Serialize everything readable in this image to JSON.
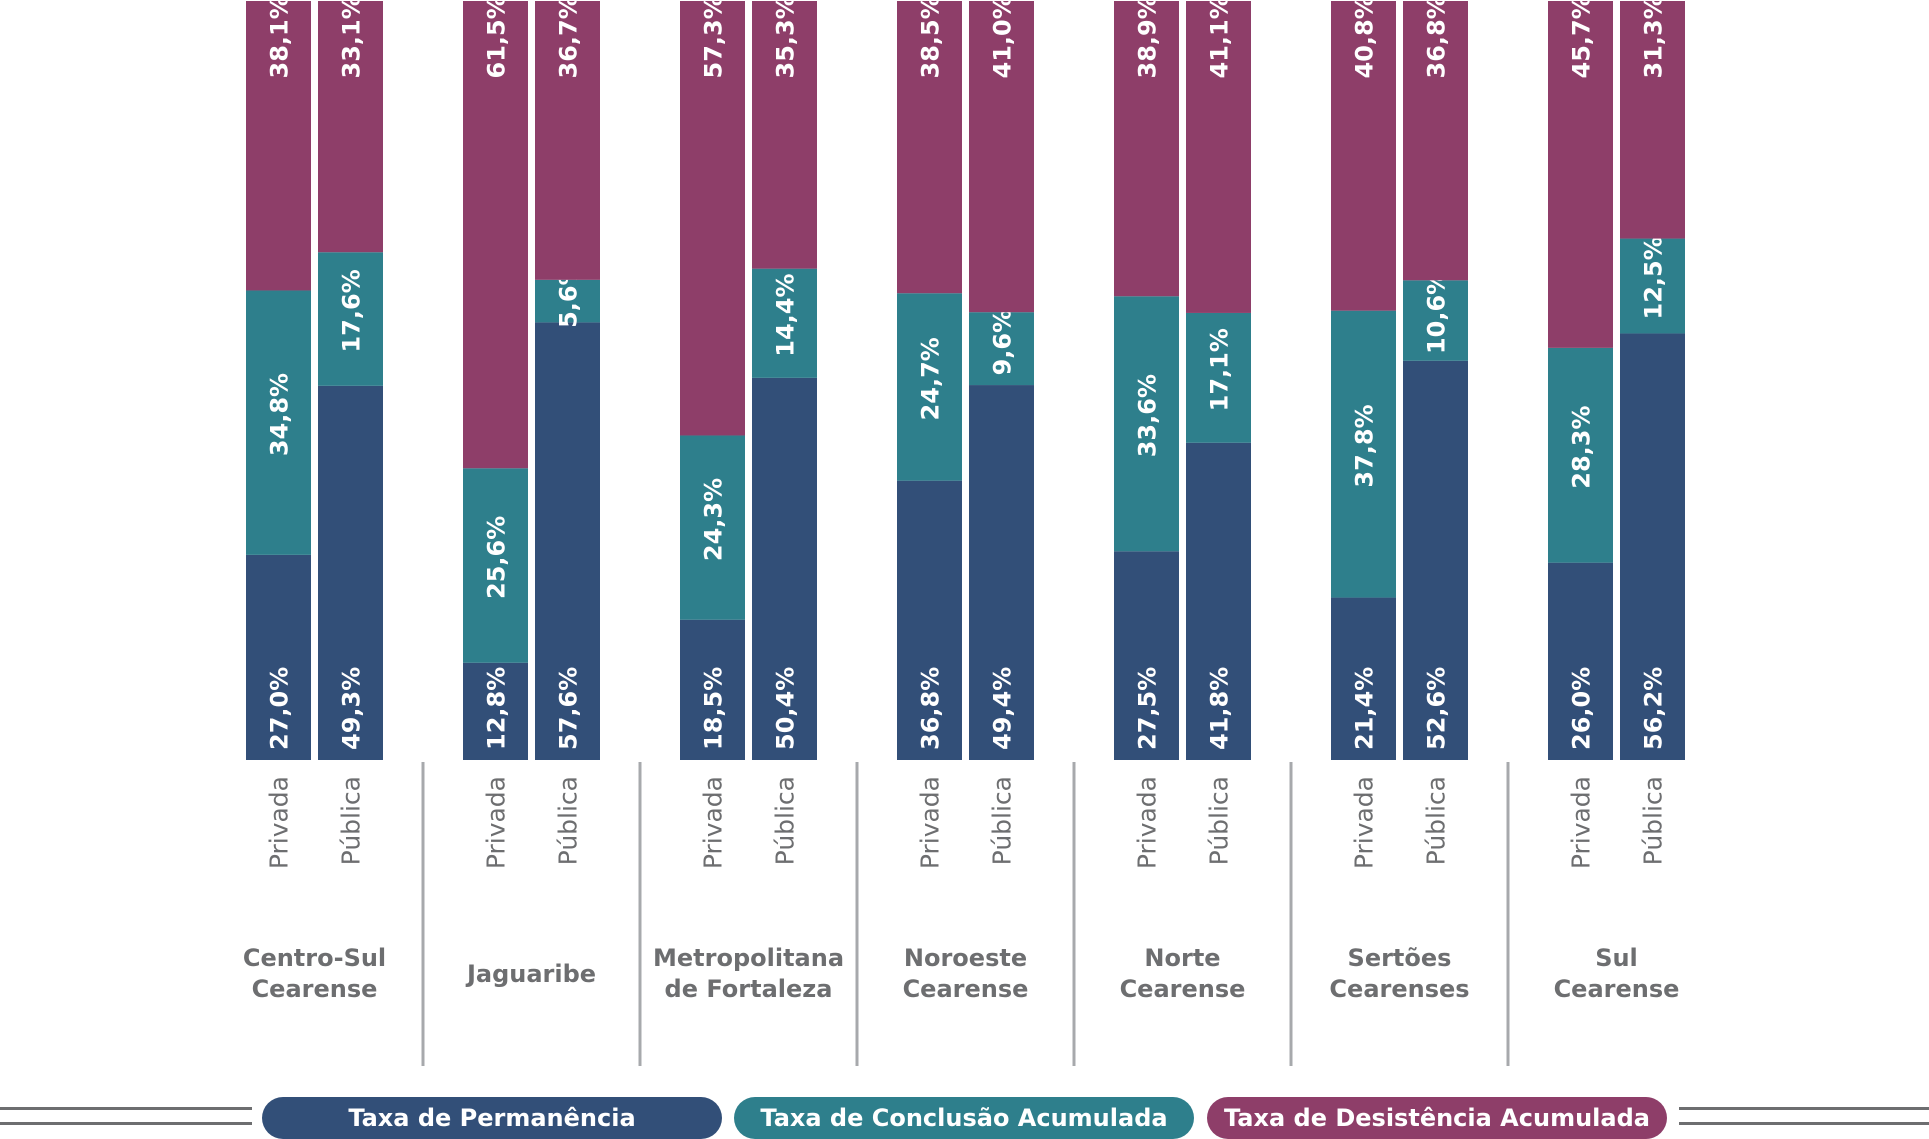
{
  "chart_data": {
    "type": "bar",
    "stacked": true,
    "orientation": "vertical",
    "ylim": [
      0,
      100
    ],
    "unit": "%",
    "grid": false,
    "legend_position": "bottom",
    "categories_sub": [
      "Privada",
      "Pública"
    ],
    "groups": [
      {
        "label": [
          "Centro-Sul",
          "Cearense"
        ],
        "bars": [
          [
            27.0,
            34.8,
            38.1
          ],
          [
            49.3,
            17.6,
            33.1
          ]
        ]
      },
      {
        "label": [
          "Jaguaribe"
        ],
        "bars": [
          [
            12.8,
            25.6,
            61.5
          ],
          [
            57.6,
            5.6,
            36.7
          ]
        ]
      },
      {
        "label": [
          "Metropolitana",
          "de Fortaleza"
        ],
        "bars": [
          [
            18.5,
            24.3,
            57.3
          ],
          [
            50.4,
            14.4,
            35.3
          ]
        ]
      },
      {
        "label": [
          "Noroeste",
          "Cearense"
        ],
        "bars": [
          [
            36.8,
            24.7,
            38.5
          ],
          [
            49.4,
            9.6,
            41.0
          ]
        ]
      },
      {
        "label": [
          "Norte",
          "Cearense"
        ],
        "bars": [
          [
            27.5,
            33.6,
            38.9
          ],
          [
            41.8,
            17.1,
            41.1
          ]
        ]
      },
      {
        "label": [
          "Sertões",
          "Cearenses"
        ],
        "bars": [
          [
            21.4,
            37.8,
            40.8
          ],
          [
            52.6,
            10.6,
            36.8
          ]
        ]
      },
      {
        "label": [
          "Sul",
          "Cearense"
        ],
        "bars": [
          [
            26.0,
            28.3,
            45.7
          ],
          [
            56.2,
            12.5,
            31.3
          ]
        ]
      }
    ],
    "series": [
      {
        "name": "Taxa de Permanência",
        "color": "#324f78"
      },
      {
        "name": "Taxa de Conclusão Acumulada",
        "color": "#2e7f8c"
      },
      {
        "name": "Taxa de Desistência Acumulada",
        "color": "#8e3e69"
      }
    ]
  }
}
